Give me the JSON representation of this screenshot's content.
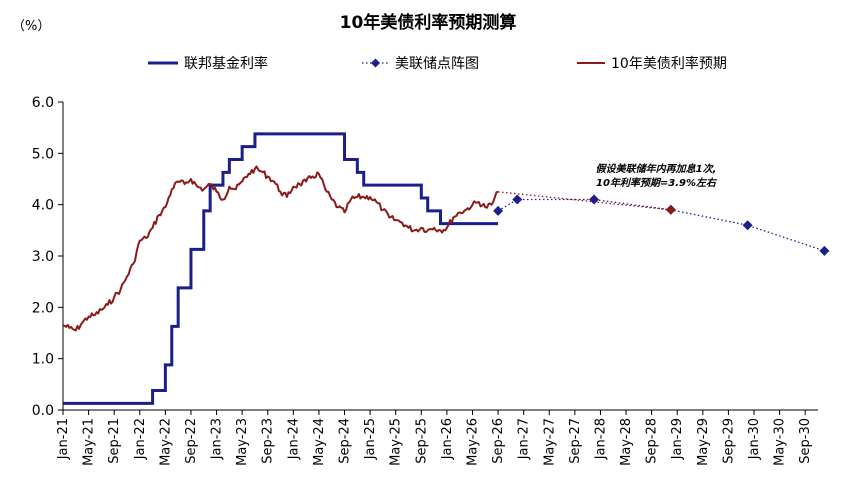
{
  "chart_data": {
    "type": "line",
    "title": "10年美债利率预期测算",
    "unit_label": "（%）",
    "ylim": [
      0,
      6
    ],
    "yticks": [
      "0.0",
      "1.0",
      "2.0",
      "3.0",
      "4.0",
      "5.0",
      "6.0"
    ],
    "x_tick_labels": [
      "Jan-21",
      "May-21",
      "Sep-21",
      "Jan-22",
      "May-22",
      "Sep-22",
      "Jan-23",
      "May-23",
      "Sep-23",
      "Jan-24",
      "May-24",
      "Sep-24",
      "Jan-25",
      "May-25",
      "Sep-25",
      "Jan-26",
      "May-26",
      "Sep-26",
      "Jan-27",
      "May-27",
      "Sep-27",
      "Jan-28",
      "May-28",
      "Sep-28",
      "Jan-29",
      "May-29",
      "Sep-29",
      "Jan-30",
      "May-30",
      "Sep-30"
    ],
    "grid": false,
    "legend_position": "top",
    "annotation": [
      "假设美联储年内再加息1次,",
      "10年利率预期=3.9%左右"
    ],
    "series": [
      {
        "name": "联邦基金利率",
        "style": "step",
        "color": "#1a1f8c",
        "x": [
          "2021-01",
          "2022-03",
          "2022-05",
          "2022-06",
          "2022-07",
          "2022-09",
          "2022-11",
          "2022-12",
          "2023-02",
          "2023-03",
          "2023-05",
          "2023-07",
          "2024-09",
          "2024-11",
          "2024-12",
          "2025-09",
          "2025-10",
          "2025-12",
          "2026-09"
        ],
        "values": [
          0.13,
          0.38,
          0.88,
          1.63,
          2.38,
          3.13,
          3.88,
          4.38,
          4.63,
          4.88,
          5.13,
          5.38,
          4.88,
          4.63,
          4.38,
          4.13,
          3.88,
          3.63,
          3.63
        ]
      },
      {
        "name": "美联储点阵图",
        "style": "dotted-diamond",
        "color": "#1a1f8c",
        "x": [
          "2026-09",
          "2026-12",
          "2027-12",
          "2028-12",
          "2029-12",
          "2030-12"
        ],
        "values": [
          3.88,
          4.1,
          4.1,
          3.9,
          3.6,
          3.1
        ]
      },
      {
        "name": "10年美债利率预期",
        "style": "line",
        "color": "#8b1a1a",
        "x": [
          "2021-01",
          "2021-02",
          "2021-03",
          "2021-04",
          "2021-05",
          "2021-06",
          "2021-07",
          "2021-08",
          "2021-09",
          "2021-10",
          "2021-11",
          "2021-12",
          "2022-01",
          "2022-02",
          "2022-03",
          "2022-04",
          "2022-05",
          "2022-06",
          "2022-07",
          "2022-08",
          "2022-09",
          "2022-10",
          "2022-11",
          "2022-12",
          "2023-01",
          "2023-02",
          "2023-03",
          "2023-04",
          "2023-05",
          "2023-06",
          "2023-07",
          "2023-08",
          "2023-09",
          "2023-10",
          "2023-11",
          "2023-12",
          "2024-01",
          "2024-02",
          "2024-03",
          "2024-04",
          "2024-05",
          "2024-06",
          "2024-07",
          "2024-08",
          "2024-09",
          "2024-10",
          "2024-11",
          "2024-12",
          "2025-01",
          "2025-02",
          "2025-03",
          "2025-04",
          "2025-05",
          "2025-06",
          "2025-07",
          "2025-08",
          "2025-09",
          "2025-10",
          "2025-11",
          "2025-12",
          "2026-01",
          "2026-02",
          "2026-03",
          "2026-04",
          "2026-05",
          "2026-06",
          "2026-07",
          "2026-08",
          "2026-09"
        ],
        "values": [
          1.65,
          1.6,
          1.55,
          1.7,
          1.82,
          1.85,
          1.95,
          2.05,
          2.2,
          2.35,
          2.6,
          2.85,
          3.3,
          3.35,
          3.55,
          3.8,
          3.95,
          4.3,
          4.45,
          4.4,
          4.5,
          4.35,
          4.3,
          4.4,
          4.25,
          4.1,
          4.35,
          4.3,
          4.45,
          4.6,
          4.7,
          4.65,
          4.55,
          4.45,
          4.25,
          4.15,
          4.35,
          4.4,
          4.45,
          4.55,
          4.6,
          4.3,
          4.1,
          3.95,
          3.85,
          4.1,
          4.15,
          4.15,
          4.15,
          4.05,
          3.9,
          3.75,
          3.7,
          3.65,
          3.55,
          3.5,
          3.55,
          3.5,
          3.55,
          3.5,
          3.55,
          3.75,
          3.85,
          3.9,
          4.0,
          4.05,
          3.95,
          4.0,
          4.25
        ]
      },
      {
        "name": "10年美债利率预期（测算）",
        "style": "dotted-diamond",
        "color": "#8b1a1a",
        "x": [
          "2026-09",
          "2028-12"
        ],
        "values": [
          4.25,
          3.9
        ]
      }
    ]
  }
}
